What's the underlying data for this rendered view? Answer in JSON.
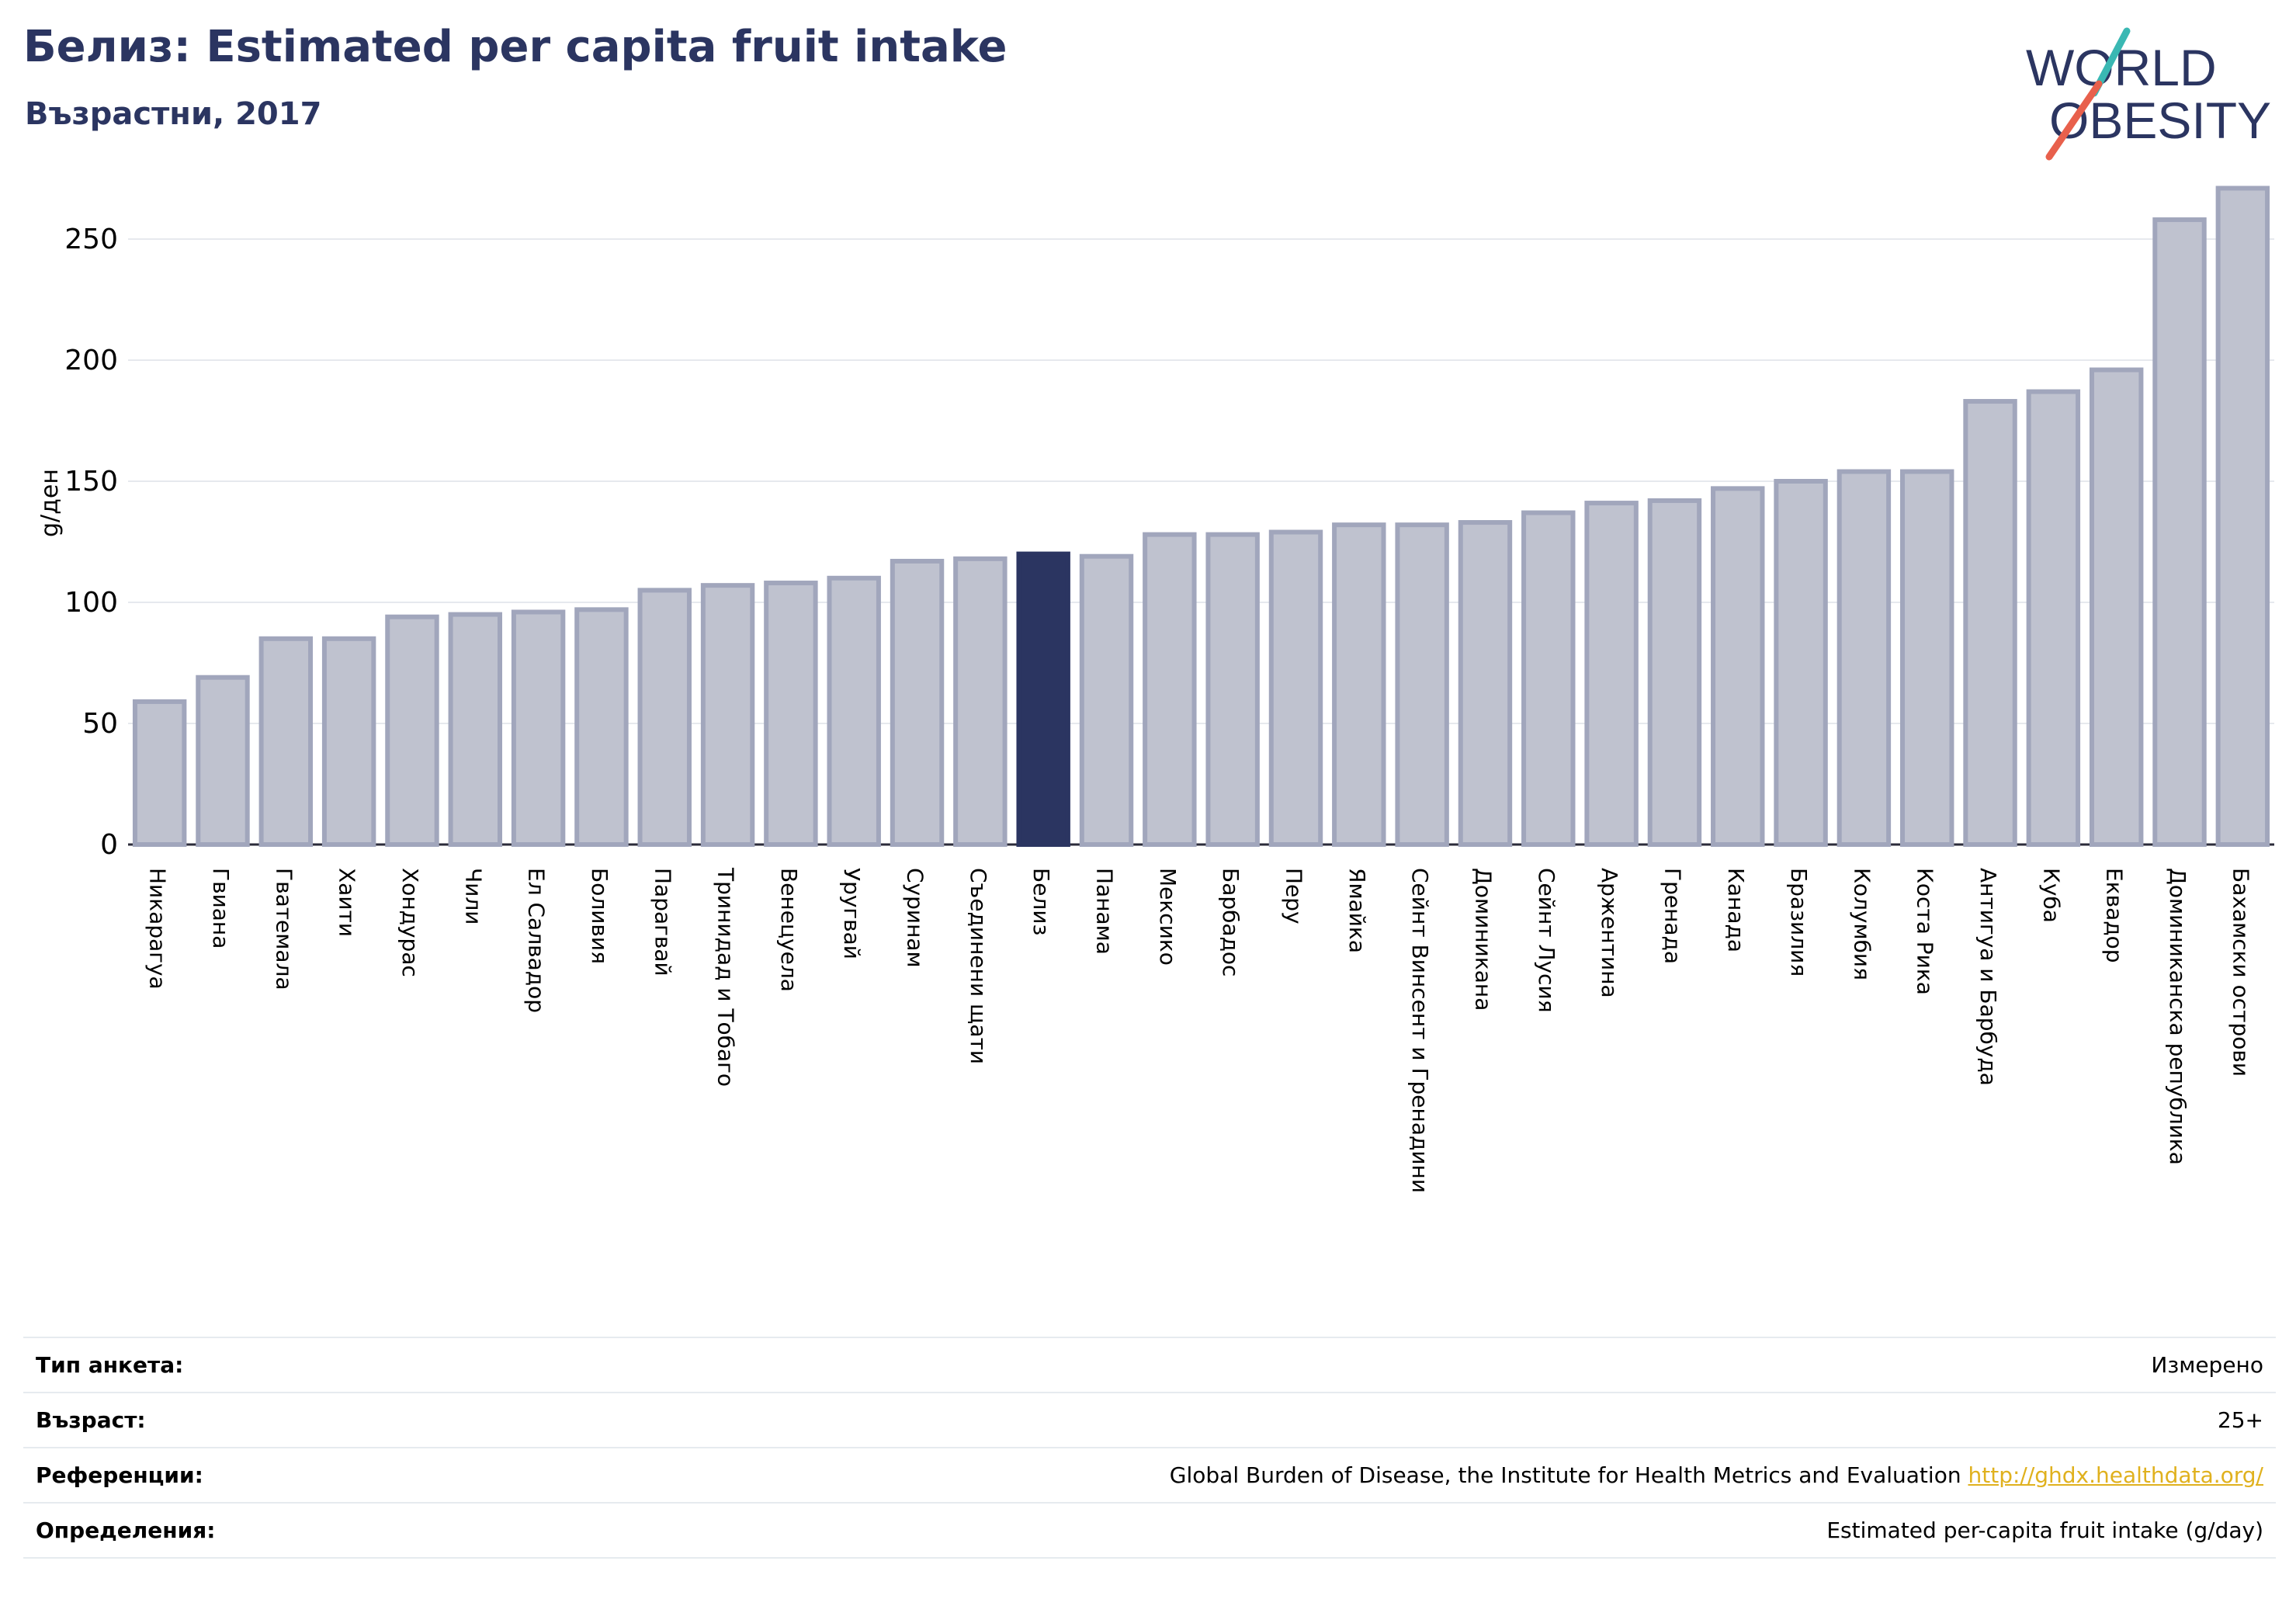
{
  "header": {
    "title": "Белиз: Estimated per capita fruit intake",
    "subtitle": "Възрастни, 2017"
  },
  "logo": {
    "line1": "WORLD",
    "line2": "OBESITY"
  },
  "colors": {
    "bar_fill": "#bfc2cf",
    "bar_stroke": "#a1a6bc",
    "highlight": "#2b3561",
    "title": "#2b3561",
    "logo_text": "#2b3561",
    "logo_teal": "#3ab8b3",
    "logo_red": "#e8604c",
    "link": "#e0b11e"
  },
  "chart_data": {
    "type": "bar",
    "ylabel": "g/ден",
    "ylim": [
      0,
      275
    ],
    "yticks": [
      0,
      50,
      100,
      150,
      200,
      250
    ],
    "grid": true,
    "highlight": "Белиз",
    "categories": [
      "Никарагуа",
      "Гвиана",
      "Гватемала",
      "Хаити",
      "Хондурас",
      "Чили",
      "Ел Салвадор",
      "Боливия",
      "Парагвай",
      "Тринидад и Тобаго",
      "Венецуела",
      "Уругвай",
      "Суринам",
      "Съединени щати",
      "Белиз",
      "Панама",
      "Мексико",
      "Барбадос",
      "Перу",
      "Ямайка",
      "Сейнт Винсент и Гренадини",
      "Доминикана",
      "Сейнт Лусия",
      "Аржентина",
      "Гренада",
      "Канада",
      "Бразилия",
      "Колумбия",
      "Коста Рика",
      "Антигуа и Барбуда",
      "Куба",
      "Еквадор",
      "Доминиканска република",
      "Бахамски острови"
    ],
    "values": [
      59,
      69,
      85,
      85,
      94,
      95,
      96,
      97,
      105,
      107,
      108,
      110,
      117,
      118,
      120,
      119,
      128,
      128,
      129,
      132,
      132,
      133,
      137,
      141,
      142,
      147,
      150,
      154,
      154,
      183,
      187,
      196,
      258,
      271
    ]
  },
  "meta": [
    {
      "label": "Тип анкета:",
      "value": "Измерено"
    },
    {
      "label": "Възраст:",
      "value": "25+"
    },
    {
      "label": "Референции:",
      "value": "Global Burden of Disease, the Institute for Health Metrics and Evaluation",
      "link": "http://ghdx.healthdata.org/"
    },
    {
      "label": "Определения:",
      "value": "Estimated per-capita fruit intake (g/day)"
    }
  ]
}
